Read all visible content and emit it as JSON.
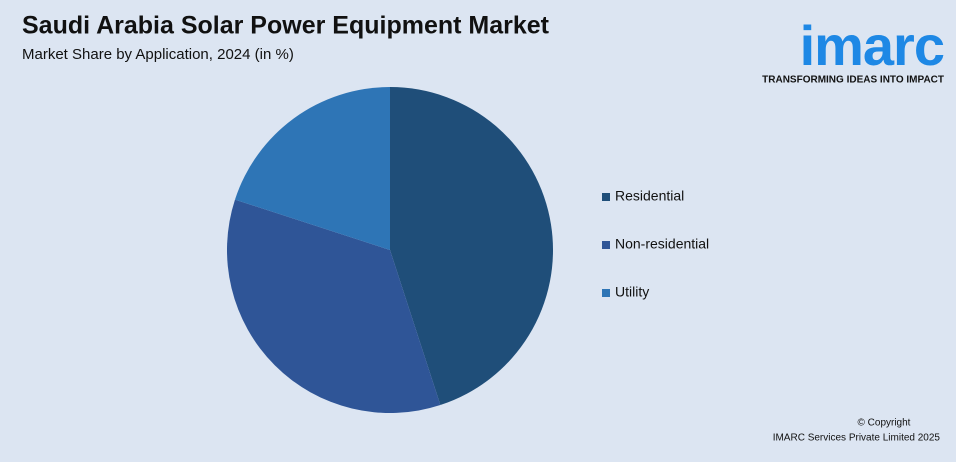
{
  "chart_data": {
    "type": "pie",
    "title": "Saudi Arabia Solar Power Equipment Market",
    "subtitle": "Market Share by Application, 2024 (in %)",
    "categories": [
      "Residential",
      "Non-residential",
      "Utility"
    ],
    "values": [
      45,
      35,
      20
    ],
    "colors": [
      "#1f4e79",
      "#2f5597",
      "#2e75b6"
    ],
    "legend": "right"
  },
  "branding": {
    "logo": "imarc",
    "tagline": "TRANSFORMING IDEAS INTO IMPACT",
    "copyright": [
      "© Copyright",
      "IMARC Services Private Limited 2025"
    ]
  }
}
